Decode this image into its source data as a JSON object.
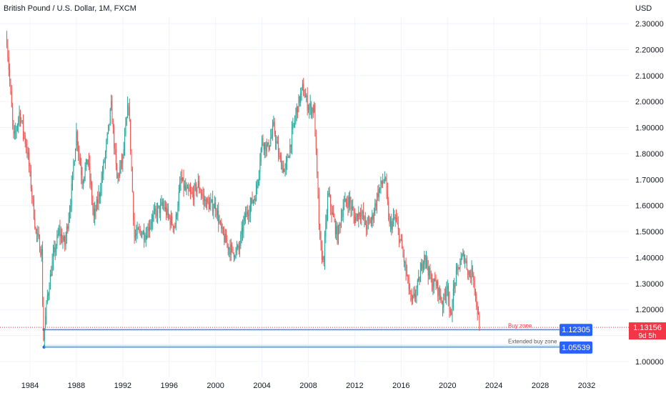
{
  "chart_data": {
    "type": "candlestick",
    "title": "British Pound / U.S. Dollar, 1M, FXCM",
    "currency": "USD",
    "ylim": [
      0.95,
      2.33
    ],
    "xlim": [
      1982.0,
      2033.6
    ],
    "y_ticks": [
      "1.00000",
      "1.10000",
      "1.20000",
      "1.30000",
      "1.40000",
      "1.50000",
      "1.60000",
      "1.70000",
      "1.80000",
      "1.90000",
      "2.00000",
      "2.10000",
      "2.20000",
      "2.30000"
    ],
    "x_ticks": [
      "1984",
      "1988",
      "1992",
      "1996",
      "2000",
      "2004",
      "2008",
      "2012",
      "2016",
      "2020",
      "2024",
      "2028",
      "2032"
    ],
    "colors": {
      "up": "#26a69a",
      "down": "#ef5350",
      "zone_line": "#2962ff",
      "zone_fill": "#bbdefb",
      "price_tag": "#f23645",
      "zone_tag": "#2962ff"
    },
    "price_path": [
      [
        1982.0,
        2.24
      ],
      [
        1982.6,
        1.85
      ],
      [
        1983.1,
        1.96
      ],
      [
        1983.8,
        1.8
      ],
      [
        1984.5,
        1.5
      ],
      [
        1985.0,
        1.42
      ],
      [
        1985.15,
        1.08
      ],
      [
        1985.5,
        1.25
      ],
      [
        1986.0,
        1.4
      ],
      [
        1986.5,
        1.5
      ],
      [
        1987.0,
        1.45
      ],
      [
        1987.5,
        1.62
      ],
      [
        1988.0,
        1.88
      ],
      [
        1988.5,
        1.7
      ],
      [
        1989.0,
        1.78
      ],
      [
        1989.5,
        1.55
      ],
      [
        1990.0,
        1.65
      ],
      [
        1990.5,
        1.8
      ],
      [
        1991.0,
        1.98
      ],
      [
        1991.5,
        1.7
      ],
      [
        1992.0,
        1.78
      ],
      [
        1992.5,
        2.0
      ],
      [
        1993.0,
        1.48
      ],
      [
        1993.5,
        1.5
      ],
      [
        1994.0,
        1.49
      ],
      [
        1994.5,
        1.55
      ],
      [
        1995.0,
        1.58
      ],
      [
        1995.5,
        1.6
      ],
      [
        1996.0,
        1.55
      ],
      [
        1996.5,
        1.52
      ],
      [
        1997.0,
        1.7
      ],
      [
        1997.5,
        1.65
      ],
      [
        1998.0,
        1.64
      ],
      [
        1998.5,
        1.68
      ],
      [
        1999.0,
        1.62
      ],
      [
        1999.5,
        1.6
      ],
      [
        2000.0,
        1.6
      ],
      [
        2000.5,
        1.5
      ],
      [
        2001.0,
        1.45
      ],
      [
        2001.5,
        1.42
      ],
      [
        2002.0,
        1.43
      ],
      [
        2002.5,
        1.55
      ],
      [
        2003.0,
        1.6
      ],
      [
        2003.5,
        1.65
      ],
      [
        2004.0,
        1.85
      ],
      [
        2004.5,
        1.82
      ],
      [
        2005.0,
        1.9
      ],
      [
        2005.5,
        1.78
      ],
      [
        2006.0,
        1.73
      ],
      [
        2006.5,
        1.85
      ],
      [
        2007.0,
        1.97
      ],
      [
        2007.5,
        2.05
      ],
      [
        2008.0,
        1.98
      ],
      [
        2008.5,
        1.97
      ],
      [
        2009.0,
        1.45
      ],
      [
        2009.3,
        1.38
      ],
      [
        2009.7,
        1.65
      ],
      [
        2010.0,
        1.58
      ],
      [
        2010.5,
        1.48
      ],
      [
        2011.0,
        1.6
      ],
      [
        2011.5,
        1.62
      ],
      [
        2012.0,
        1.55
      ],
      [
        2012.5,
        1.58
      ],
      [
        2013.0,
        1.52
      ],
      [
        2013.5,
        1.55
      ],
      [
        2014.0,
        1.65
      ],
      [
        2014.6,
        1.71
      ],
      [
        2015.0,
        1.52
      ],
      [
        2015.5,
        1.55
      ],
      [
        2016.0,
        1.45
      ],
      [
        2016.6,
        1.3
      ],
      [
        2016.9,
        1.22
      ],
      [
        2017.5,
        1.3
      ],
      [
        2018.0,
        1.42
      ],
      [
        2018.6,
        1.3
      ],
      [
        2019.0,
        1.3
      ],
      [
        2019.6,
        1.22
      ],
      [
        2020.0,
        1.31
      ],
      [
        2020.2,
        1.15
      ],
      [
        2020.6,
        1.3
      ],
      [
        2021.0,
        1.37
      ],
      [
        2021.4,
        1.41
      ],
      [
        2021.9,
        1.33
      ],
      [
        2022.2,
        1.35
      ],
      [
        2022.5,
        1.22
      ],
      [
        2022.8,
        1.13156
      ]
    ],
    "current_price": 1.13156,
    "current_price_label": "1.13156",
    "countdown_label": "9d 5h",
    "zones": [
      {
        "label": "Buy zone",
        "price": 1.12305,
        "price_label": "1.12305",
        "low": 1.118,
        "high": 1.125,
        "x_start": 1985.2
      },
      {
        "label": "Extended buy zone",
        "price": 1.05539,
        "price_label": "1.05539",
        "low": 1.05539,
        "high": 1.0645,
        "x_start": 1985.2
      }
    ]
  }
}
